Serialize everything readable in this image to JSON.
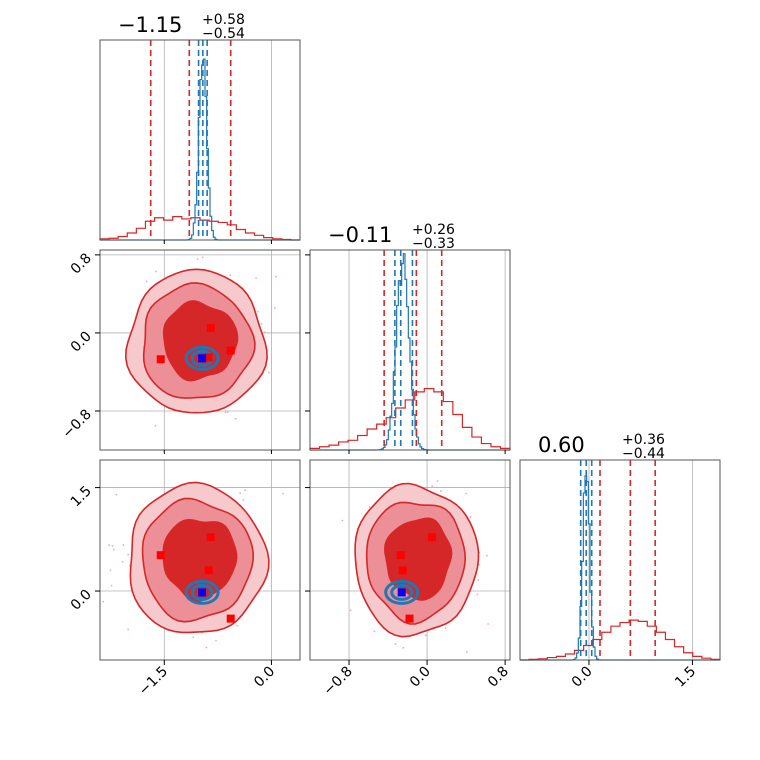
{
  "chart_data": {
    "type": "corner",
    "colors": {
      "wide": "#d62728",
      "narrow": "#1f77b4",
      "scatter": "#f4a6b4",
      "marker_red": "#ff0000",
      "marker_blue": "#0000ff",
      "grid": "#b0b0b0"
    },
    "params": [
      {
        "title_main": "−1.15",
        "title_sup": "+0.58",
        "title_sub": "−0.54",
        "range": [
          -2.4,
          0.4
        ],
        "ticks": [
          -1.5,
          0.0
        ],
        "tick_labels": [
          "−1.5",
          "0.0"
        ],
        "red_quantiles": [
          -1.69,
          -1.15,
          -0.57
        ],
        "blue_quantiles": [
          -1.02,
          -0.96,
          -0.9
        ]
      },
      {
        "title_main": "−0.11",
        "title_sup": "+0.26",
        "title_sub": "−0.33",
        "range": [
          -1.2,
          0.85
        ],
        "ticks": [
          -0.8,
          0.0,
          0.8
        ],
        "tick_labels": [
          "−0.8",
          "0.0",
          "0.8"
        ],
        "red_quantiles": [
          -0.44,
          -0.11,
          0.15
        ],
        "blue_quantiles": [
          -0.33,
          -0.27,
          -0.15
        ]
      },
      {
        "title_main": "0.60",
        "title_sup": "+0.36",
        "title_sub": "−0.44",
        "range": [
          -1.0,
          1.9
        ],
        "ticks": [
          0.0,
          1.5
        ],
        "tick_labels": [
          "0.0",
          "1.5"
        ],
        "red_quantiles": [
          0.16,
          0.6,
          0.96
        ],
        "blue_quantiles": [
          -0.12,
          -0.04,
          0.04
        ]
      }
    ],
    "y_ticks": {
      "row1": {
        "ticks": [
          0.8,
          0.0,
          -0.8
        ],
        "tick_labels": [
          "0.8",
          "0.0",
          "−0.8"
        ]
      },
      "row2": {
        "ticks": [
          1.5,
          0.0
        ],
        "tick_labels": [
          "1.5",
          "0.0"
        ]
      }
    },
    "hist_red": [
      [
        0.01,
        0.015,
        0.03,
        0.06,
        0.1,
        0.16,
        0.19,
        0.17,
        0.2,
        0.18,
        0.19,
        0.17,
        0.16,
        0.15,
        0.13,
        0.09,
        0.06,
        0.04,
        0.02,
        0.01,
        0.005,
        0.0
      ],
      [
        0.01,
        0.02,
        0.03,
        0.05,
        0.06,
        0.09,
        0.13,
        0.16,
        0.2,
        0.26,
        0.31,
        0.36,
        0.38,
        0.36,
        0.3,
        0.22,
        0.14,
        0.08,
        0.04,
        0.02,
        0.01
      ],
      [
        0.0,
        0.005,
        0.01,
        0.02,
        0.03,
        0.05,
        0.08,
        0.12,
        0.17,
        0.23,
        0.28,
        0.31,
        0.33,
        0.32,
        0.28,
        0.23,
        0.17,
        0.11,
        0.06,
        0.03,
        0.015,
        0.005
      ]
    ],
    "hist_blue": [
      {
        "center": -0.96,
        "sigma": 0.055,
        "peak": 1.0
      },
      {
        "center": -0.25,
        "sigma": 0.065,
        "peak": 1.0
      },
      {
        "center": -0.04,
        "sigma": 0.05,
        "peak": 1.0
      }
    ],
    "markers_red": {
      "p1p2": [
        [
          -1.55,
          -0.27
        ],
        [
          -0.85,
          0.05
        ],
        [
          -0.88,
          -0.25
        ],
        [
          -0.57,
          -0.18
        ]
      ],
      "p1p3": [
        [
          -1.55,
          0.52
        ],
        [
          -0.85,
          0.78
        ],
        [
          -0.88,
          0.3
        ],
        [
          -0.57,
          -0.4
        ]
      ],
      "p2p3": [
        [
          -0.27,
          0.52
        ],
        [
          0.05,
          0.78
        ],
        [
          -0.25,
          0.3
        ],
        [
          -0.18,
          -0.4
        ]
      ]
    },
    "markers_blue": {
      "p1p2": [
        [
          -0.97,
          -0.26
        ]
      ],
      "p1p3": [
        [
          -0.97,
          -0.02
        ]
      ],
      "p2p3": [
        [
          -0.26,
          -0.02
        ]
      ]
    }
  }
}
